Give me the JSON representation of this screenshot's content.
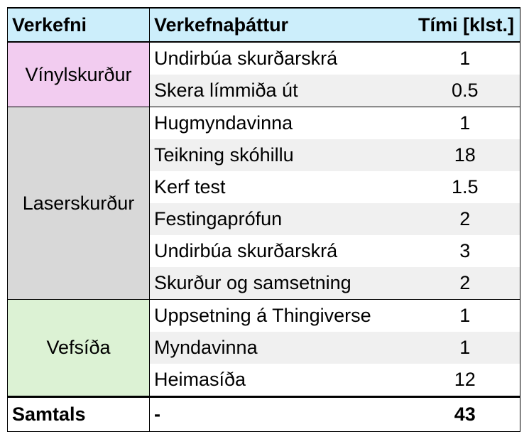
{
  "header": {
    "col_group": "Verkefni",
    "col_task": "Verkefnaþáttur",
    "col_time": "Tími [klst.]"
  },
  "groups": [
    {
      "name": "Vínylskurður",
      "color": "#f2ccf0",
      "rows": [
        {
          "task": "Undirbúa skurðarskrá",
          "time": "1"
        },
        {
          "task": "Skera límmiða út",
          "time": "0.5"
        }
      ]
    },
    {
      "name": "Laserskurður",
      "color": "#d8d8d8",
      "rows": [
        {
          "task": "Hugmyndavinna",
          "time": "1"
        },
        {
          "task": "Teikning skóhillu",
          "time": "18"
        },
        {
          "task": "Kerf test",
          "time": "1.5"
        },
        {
          "task": "Festingaprófun",
          "time": "2"
        },
        {
          "task": "Undirbúa skurðarskrá",
          "time": "3"
        },
        {
          "task": "Skurður og samsetning",
          "time": "2"
        }
      ]
    },
    {
      "name": "Vefsíða",
      "color": "#dcf2d4",
      "rows": [
        {
          "task": "Uppsetning á Thingiverse",
          "time": "1"
        },
        {
          "task": "Myndavinna",
          "time": "1"
        },
        {
          "task": "Heimasíða",
          "time": "12"
        }
      ]
    }
  ],
  "total": {
    "label": "Samtals",
    "task": "-",
    "time": "43"
  }
}
